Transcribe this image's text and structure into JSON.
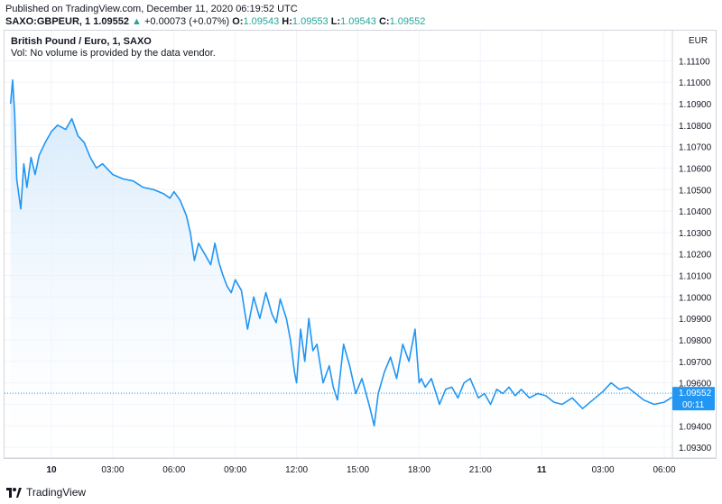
{
  "header": {
    "published": "Published on TradingView.com, December 11, 2020 06:19:52 UTC",
    "symbol": "SAXO:GBPEUR, 1",
    "last": "1.09552",
    "change_arrow": "▲",
    "change": "+0.00073 (+0.07%)",
    "o_label": "O:",
    "o_value": "1.09543",
    "h_label": "H:",
    "h_value": "1.09553",
    "l_label": "L:",
    "l_value": "1.09543",
    "c_label": "C:",
    "c_value": "1.09552"
  },
  "legend": {
    "title": "British Pound / Euro, 1, SAXO",
    "volume_note": "Vol: No volume is provided by the data vendor."
  },
  "footer": {
    "brand": "TradingView"
  },
  "colors": {
    "line": "#2196f3",
    "fill_top": "#cfe6fb",
    "grid": "#f0f3fa",
    "badge": "#2196f3",
    "up": "#26a69a"
  },
  "chart_data": {
    "type": "area",
    "currency": "EUR",
    "price_label": "1.09552",
    "countdown_label": "00:11",
    "ylim": [
      1.0925,
      1.1124
    ],
    "yticks": [
      "1.11100",
      "1.11000",
      "1.10900",
      "1.10800",
      "1.10700",
      "1.10600",
      "1.10500",
      "1.10400",
      "1.10300",
      "1.10200",
      "1.10100",
      "1.10000",
      "1.09900",
      "1.09800",
      "1.09700",
      "1.09600",
      "1.09500",
      "1.09400",
      "1.09300"
    ],
    "xticks": [
      {
        "label": "10",
        "t": 0,
        "bold": true
      },
      {
        "label": "03:00",
        "t": 3
      },
      {
        "label": "06:00",
        "t": 6
      },
      {
        "label": "09:00",
        "t": 9
      },
      {
        "label": "12:00",
        "t": 12
      },
      {
        "label": "15:00",
        "t": 15
      },
      {
        "label": "18:00",
        "t": 18
      },
      {
        "label": "21:00",
        "t": 21
      },
      {
        "label": "11",
        "t": 24,
        "bold": true
      },
      {
        "label": "03:00",
        "t": 27
      },
      {
        "label": "06:00",
        "t": 30
      }
    ],
    "x_hours": [
      -2.0,
      -1.9,
      -1.8,
      -1.7,
      -1.5,
      -1.35,
      -1.2,
      -1.0,
      -0.8,
      -0.6,
      -0.3,
      0.0,
      0.3,
      0.7,
      1.0,
      1.3,
      1.6,
      1.9,
      2.2,
      2.5,
      3.0,
      3.5,
      4.0,
      4.5,
      5.0,
      5.5,
      5.8,
      6.0,
      6.3,
      6.6,
      6.8,
      7.0,
      7.2,
      7.5,
      7.8,
      8.0,
      8.2,
      8.4,
      8.6,
      8.8,
      9.0,
      9.3,
      9.6,
      9.9,
      10.2,
      10.5,
      10.8,
      11.0,
      11.2,
      11.5,
      11.7,
      11.9,
      12.0,
      12.2,
      12.4,
      12.6,
      12.8,
      13.0,
      13.3,
      13.6,
      13.8,
      14.0,
      14.3,
      14.6,
      14.9,
      15.2,
      15.4,
      15.6,
      15.8,
      16.0,
      16.3,
      16.6,
      16.9,
      17.2,
      17.5,
      17.8,
      18.0,
      18.1,
      18.3,
      18.6,
      19.0,
      19.3,
      19.6,
      19.9,
      20.2,
      20.5,
      20.9,
      21.2,
      21.5,
      21.8,
      22.1,
      22.4,
      22.7,
      23.0,
      23.4,
      23.8,
      24.2,
      24.6,
      25.0,
      25.5,
      26.0,
      26.5,
      27.0,
      27.4,
      27.8,
      28.2,
      28.6,
      29.0,
      29.5,
      30.0,
      30.5,
      30.9
    ],
    "values": [
      1.109,
      1.1101,
      1.1085,
      1.1055,
      1.1041,
      1.1062,
      1.1051,
      1.1065,
      1.1057,
      1.1066,
      1.1072,
      1.1077,
      1.108,
      1.1078,
      1.1083,
      1.1075,
      1.1072,
      1.1065,
      1.106,
      1.1062,
      1.1057,
      1.1055,
      1.1054,
      1.1051,
      1.105,
      1.1048,
      1.1046,
      1.1049,
      1.1045,
      1.1038,
      1.103,
      1.1017,
      1.1025,
      1.102,
      1.1015,
      1.1025,
      1.1016,
      1.101,
      1.1005,
      1.1002,
      1.1008,
      1.1003,
      1.0985,
      1.1,
      1.099,
      1.1002,
      1.0992,
      1.0988,
      1.0999,
      1.099,
      1.098,
      1.0965,
      1.096,
      1.0985,
      1.097,
      1.099,
      1.0975,
      1.0978,
      1.096,
      1.0968,
      1.0958,
      1.0952,
      1.0978,
      1.0968,
      1.0955,
      1.0962,
      1.0955,
      1.0948,
      1.094,
      1.0955,
      1.0965,
      1.0972,
      1.0962,
      1.0978,
      1.097,
      1.0985,
      1.096,
      1.0962,
      1.0958,
      1.0962,
      1.095,
      1.0957,
      1.0958,
      1.0953,
      1.096,
      1.0962,
      1.0953,
      1.0955,
      1.095,
      1.0957,
      1.0955,
      1.0958,
      1.0954,
      1.0957,
      1.0953,
      1.0955,
      1.0954,
      1.0951,
      1.095,
      1.0953,
      1.0948,
      1.0952,
      1.0956,
      1.096,
      1.0957,
      1.0958,
      1.0955,
      1.0952,
      1.095,
      1.0951,
      1.0954,
      1.0955
    ]
  }
}
